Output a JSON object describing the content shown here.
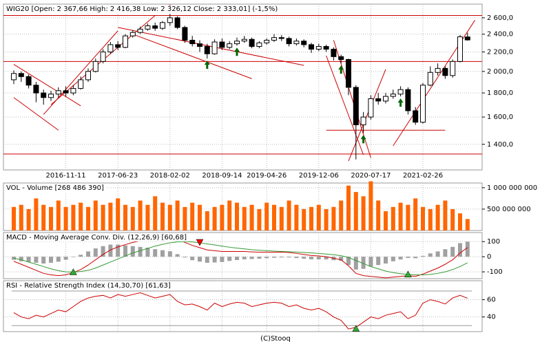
{
  "chart_data": [
    {
      "type": "candlestick",
      "title": "WIG20 [Open: 2 367,66  High: 2 416,38  Low: 2 326,12  Close: 2 333,01] (-1,5%)",
      "categories": [
        null,
        null,
        null,
        null,
        null,
        null,
        null,
        "2016-11-11",
        null,
        null,
        null,
        null,
        null,
        null,
        "2017-06-23",
        null,
        null,
        null,
        null,
        null,
        null,
        "2018-02-02",
        null,
        null,
        null,
        null,
        null,
        null,
        "2018-09-14",
        null,
        null,
        null,
        null,
        null,
        "2019-04-26",
        null,
        null,
        null,
        null,
        null,
        null,
        "2019-12-06",
        null,
        null,
        null,
        null,
        null,
        null,
        "2020-07-17",
        null,
        null,
        null,
        null,
        null,
        null,
        "2021-02-26",
        null,
        null,
        null,
        null,
        null,
        null
      ],
      "candles": [
        [
          1920,
          2010,
          1880,
          1980
        ],
        [
          1980,
          2000,
          1900,
          1950
        ],
        [
          1950,
          1970,
          1840,
          1870
        ],
        [
          1870,
          1900,
          1720,
          1800
        ],
        [
          1800,
          1830,
          1700,
          1760
        ],
        [
          1760,
          1820,
          1730,
          1790
        ],
        [
          1790,
          1850,
          1760,
          1820
        ],
        [
          1820,
          1860,
          1770,
          1800
        ],
        [
          1800,
          1870,
          1780,
          1840
        ],
        [
          1840,
          1950,
          1830,
          1920
        ],
        [
          1920,
          2030,
          1900,
          2000
        ],
        [
          2000,
          2130,
          1990,
          2100
        ],
        [
          2100,
          2230,
          2080,
          2200
        ],
        [
          2200,
          2310,
          2180,
          2280
        ],
        [
          2280,
          2320,
          2220,
          2250
        ],
        [
          2250,
          2400,
          2240,
          2380
        ],
        [
          2380,
          2450,
          2360,
          2420
        ],
        [
          2420,
          2490,
          2400,
          2460
        ],
        [
          2460,
          2530,
          2440,
          2500
        ],
        [
          2500,
          2540,
          2440,
          2470
        ],
        [
          2470,
          2560,
          2450,
          2540
        ],
        [
          2540,
          2650,
          2500,
          2600
        ],
        [
          2600,
          2620,
          2460,
          2480
        ],
        [
          2480,
          2500,
          2300,
          2330
        ],
        [
          2330,
          2380,
          2260,
          2290
        ],
        [
          2290,
          2330,
          2200,
          2260
        ],
        [
          2260,
          2290,
          2130,
          2180
        ],
        [
          2180,
          2340,
          2170,
          2310
        ],
        [
          2310,
          2350,
          2220,
          2250
        ],
        [
          2250,
          2320,
          2230,
          2290
        ],
        [
          2290,
          2360,
          2270,
          2320
        ],
        [
          2320,
          2380,
          2300,
          2340
        ],
        [
          2340,
          2360,
          2240,
          2260
        ],
        [
          2260,
          2320,
          2240,
          2300
        ],
        [
          2300,
          2350,
          2280,
          2330
        ],
        [
          2330,
          2400,
          2310,
          2360
        ],
        [
          2360,
          2390,
          2320,
          2350
        ],
        [
          2350,
          2370,
          2260,
          2290
        ],
        [
          2290,
          2350,
          2270,
          2320
        ],
        [
          2320,
          2340,
          2250,
          2280
        ],
        [
          2280,
          2300,
          2190,
          2230
        ],
        [
          2230,
          2290,
          2210,
          2260
        ],
        [
          2260,
          2280,
          2200,
          2230
        ],
        [
          2230,
          2250,
          2110,
          2150
        ],
        [
          2150,
          2170,
          2080,
          2120
        ],
        [
          2120,
          2130,
          1780,
          1850
        ],
        [
          1850,
          1870,
          1300,
          1540
        ],
        [
          1540,
          1640,
          1480,
          1600
        ],
        [
          1600,
          1780,
          1580,
          1750
        ],
        [
          1750,
          1800,
          1700,
          1730
        ],
        [
          1730,
          1800,
          1710,
          1770
        ],
        [
          1770,
          1830,
          1750,
          1790
        ],
        [
          1790,
          1860,
          1770,
          1830
        ],
        [
          1830,
          1850,
          1620,
          1650
        ],
        [
          1650,
          1680,
          1540,
          1560
        ],
        [
          1560,
          1890,
          1550,
          1870
        ],
        [
          1870,
          2050,
          1860,
          1990
        ],
        [
          1990,
          2080,
          1960,
          2030
        ],
        [
          2030,
          2050,
          1930,
          1960
        ],
        [
          1960,
          2120,
          1940,
          2100
        ],
        [
          2100,
          2390,
          2090,
          2369
        ],
        [
          2367.66,
          2416.38,
          2326.12,
          2333.01
        ]
      ],
      "log": true,
      "ylim": [
        1235,
        2780
      ],
      "yticks": [
        {
          "value": 1400,
          "label": "1 400,0"
        },
        {
          "value": 1600,
          "label": "1 600,0"
        },
        {
          "value": 1800,
          "label": "1 800,0"
        },
        {
          "value": 2000,
          "label": "2 000,0"
        },
        {
          "value": 2200,
          "label": "2 200,0"
        },
        {
          "value": 2400,
          "label": "2 400,0"
        },
        {
          "value": 2600,
          "label": "2 600,0"
        }
      ],
      "up_color": "#ffffff",
      "down_color": "#000000",
      "line_color": "#cc0000",
      "levels": [
        {
          "value": 2630
        },
        {
          "value": 2100
        },
        {
          "value": 1335
        },
        {
          "value": 1500,
          "from": 42,
          "to": 58
        }
      ],
      "trend_lines": [
        [
          0,
          2070,
          9,
          1690
        ],
        [
          0,
          1760,
          6,
          1500
        ],
        [
          4,
          1620,
          14,
          2440
        ],
        [
          5,
          1700,
          19,
          2630
        ],
        [
          14,
          2480,
          39,
          2060
        ],
        [
          16,
          2400,
          32,
          1930
        ],
        [
          43,
          2330,
          48,
          1310
        ],
        [
          42,
          2160,
          47,
          1330
        ],
        [
          45,
          1290,
          50,
          2020
        ],
        [
          51,
          1390,
          62,
          2570
        ]
      ],
      "buy": [
        26,
        30,
        44,
        47,
        52
      ],
      "sell": [
        21
      ]
    },
    {
      "type": "bar",
      "title": "VOL - Volume [268 486 390]",
      "color": "#ff6600",
      "values": [
        550000000,
        600000000,
        500000000,
        750000000,
        600000000,
        550000000,
        700000000,
        550000000,
        600000000,
        650000000,
        550000000,
        700000000,
        600000000,
        650000000,
        750000000,
        600000000,
        550000000,
        700000000,
        600000000,
        800000000,
        650000000,
        600000000,
        700000000,
        550000000,
        650000000,
        600000000,
        450000000,
        550000000,
        600000000,
        700000000,
        650000000,
        550000000,
        600000000,
        500000000,
        650000000,
        600000000,
        550000000,
        700000000,
        600000000,
        500000000,
        550000000,
        600000000,
        500000000,
        550000000,
        700000000,
        1050000000,
        900000000,
        800000000,
        1150000000,
        700000000,
        450000000,
        550000000,
        650000000,
        600000000,
        750000000,
        550000000,
        500000000,
        600000000,
        700000000,
        500000000,
        400000000,
        268486390
      ],
      "ylim": [
        0,
        1110000000
      ],
      "yticks": [
        {
          "value": 500000000,
          "label": "500 000 000"
        },
        {
          "value": 1000000000,
          "label": "1 000 000 000"
        }
      ]
    },
    {
      "type": "macd",
      "title": "MACD - Moving Average Conv. Div. (12,26,9) [60,68]",
      "histogram": {
        "color": "#a0a0a0",
        "values": [
          -20,
          -30,
          -35,
          -40,
          -45,
          -40,
          -33,
          -20,
          -3,
          13,
          35,
          55,
          70,
          80,
          80,
          75,
          70,
          65,
          60,
          50,
          43,
          36,
          17,
          -5,
          -23,
          -32,
          -40,
          -38,
          -35,
          -28,
          -22,
          -17,
          -15,
          -13,
          -10,
          -7,
          -5,
          -5,
          -9,
          -13,
          -17,
          -17,
          -18,
          -23,
          -27,
          -55,
          -85,
          -80,
          -65,
          -55,
          -45,
          -30,
          -18,
          -8,
          -10,
          5,
          22,
          35,
          50,
          65,
          90,
          100
        ]
      },
      "series": [
        {
          "color": "#cc0000",
          "values": [
            -30,
            -50,
            -70,
            -90,
            -110,
            -120,
            -125,
            -120,
            -105,
            -85,
            -55,
            -20,
            15,
            45,
            65,
            80,
            95,
            105,
            115,
            120,
            125,
            128,
            115,
            95,
            75,
            60,
            45,
            40,
            35,
            35,
            35,
            35,
            32,
            30,
            30,
            30,
            30,
            28,
            22,
            15,
            8,
            5,
            0,
            -10,
            -20,
            -60,
            -110,
            -125,
            -130,
            -135,
            -140,
            -135,
            -130,
            -125,
            -130,
            -115,
            -95,
            -75,
            -50,
            -20,
            25,
            60.68
          ]
        },
        {
          "color": "#339933",
          "values": [
            -10,
            -20,
            -35,
            -50,
            -65,
            -80,
            -92,
            -100,
            -102,
            -98,
            -90,
            -75,
            -55,
            -35,
            -15,
            5,
            25,
            40,
            55,
            70,
            82,
            92,
            98,
            100,
            98,
            92,
            85,
            78,
            70,
            63,
            57,
            52,
            47,
            43,
            40,
            37,
            35,
            33,
            31,
            28,
            25,
            22,
            18,
            13,
            7,
            -5,
            -25,
            -45,
            -65,
            -80,
            -95,
            -105,
            -112,
            -117,
            -120,
            -120,
            -117,
            -110,
            -100,
            -85,
            -65,
            -40
          ]
        }
      ],
      "ylim": [
        -145,
        160
      ],
      "yticks": [
        -100,
        0,
        100
      ],
      "buy": [
        8,
        53
      ],
      "sell": [
        25
      ]
    },
    {
      "type": "line",
      "title": "RSI - Relative Strength Index (14,30,70) [61,63]",
      "series": [
        {
          "color": "#cc0000",
          "values": [
            45,
            40,
            38,
            42,
            40,
            44,
            48,
            46,
            52,
            58,
            62,
            64,
            65,
            62,
            66,
            64,
            66,
            68,
            65,
            62,
            64,
            66,
            58,
            54,
            55,
            52,
            48,
            56,
            52,
            55,
            57,
            56,
            52,
            54,
            56,
            57,
            56,
            52,
            54,
            50,
            48,
            50,
            46,
            40,
            36,
            26,
            28,
            34,
            40,
            38,
            42,
            44,
            46,
            38,
            42,
            56,
            60,
            58,
            55,
            62,
            65,
            61.63
          ]
        }
      ],
      "ylim": [
        23,
        82
      ],
      "yticks": [
        40,
        60
      ],
      "guides": [
        30,
        70
      ],
      "buy": [
        46
      ]
    }
  ],
  "footer": "(C)Stooq"
}
